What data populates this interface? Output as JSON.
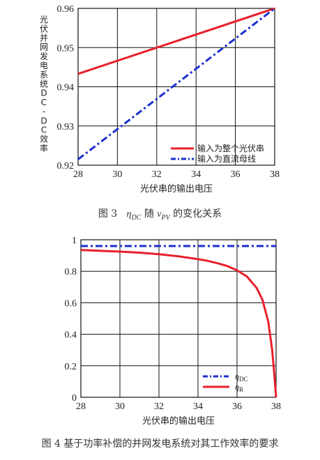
{
  "charts": [
    {
      "type": "line",
      "ylabel": "光伏并网发电系统DC-DC效率",
      "xlabel": "光伏串的输出电压",
      "x_ticks": [
        "28",
        "30",
        "32",
        "34",
        "36",
        "38"
      ],
      "y_ticks": [
        "0.92",
        "0.93",
        "0.94",
        "0.95",
        "0.96"
      ],
      "xlim": [
        28,
        38
      ],
      "ylim": [
        0.92,
        0.96
      ],
      "grid": true,
      "legend_position": "bottom-right",
      "series": [
        {
          "name": "输入为整个光伏串",
          "color": "#e8202a",
          "style": "solid",
          "x": [
            28,
            38
          ],
          "y": [
            0.9433,
            0.96
          ]
        },
        {
          "name": "输入为直流母线",
          "color": "#1a2fcf",
          "style": "dashdot",
          "x": [
            28,
            38
          ],
          "y": [
            0.9215,
            0.96
          ]
        }
      ],
      "caption": {
        "prefix": "图 3",
        "symbol": "η",
        "symbol_sub": "DC",
        "mid": " 随 ",
        "var": "v",
        "var_sub": "PV",
        "suffix": " 的变化关系"
      }
    },
    {
      "type": "line",
      "xlabel": "光伏串的输出电压",
      "x_ticks": [
        "28",
        "30",
        "32",
        "34",
        "36",
        "38"
      ],
      "y_ticks": [
        "0",
        "0.2",
        "0.4",
        "0.6",
        "0.8",
        "1"
      ],
      "xlim": [
        28,
        38
      ],
      "ylim": [
        0,
        1
      ],
      "grid": true,
      "legend_position": "bottom-right",
      "series": [
        {
          "name": "η",
          "name_sub": "DC",
          "color": "#1a2fcf",
          "style": "dashdot",
          "x": [
            28,
            38
          ],
          "y": [
            0.96,
            0.96
          ]
        },
        {
          "name": "η",
          "name_sub": "R",
          "color": "#e8202a",
          "style": "solid",
          "x": [
            28,
            29,
            30,
            31,
            32,
            33,
            34,
            34.5,
            35,
            35.5,
            36,
            36.5,
            37,
            37.3,
            37.6,
            37.8,
            37.9,
            38
          ],
          "y": [
            0.935,
            0.93,
            0.925,
            0.918,
            0.908,
            0.895,
            0.877,
            0.866,
            0.851,
            0.833,
            0.806,
            0.767,
            0.695,
            0.62,
            0.48,
            0.3,
            0.16,
            0.0
          ]
        }
      ],
      "caption": {
        "text": "图 4 基于功率补偿的并网发电系统对其工作效率的要求"
      }
    }
  ]
}
